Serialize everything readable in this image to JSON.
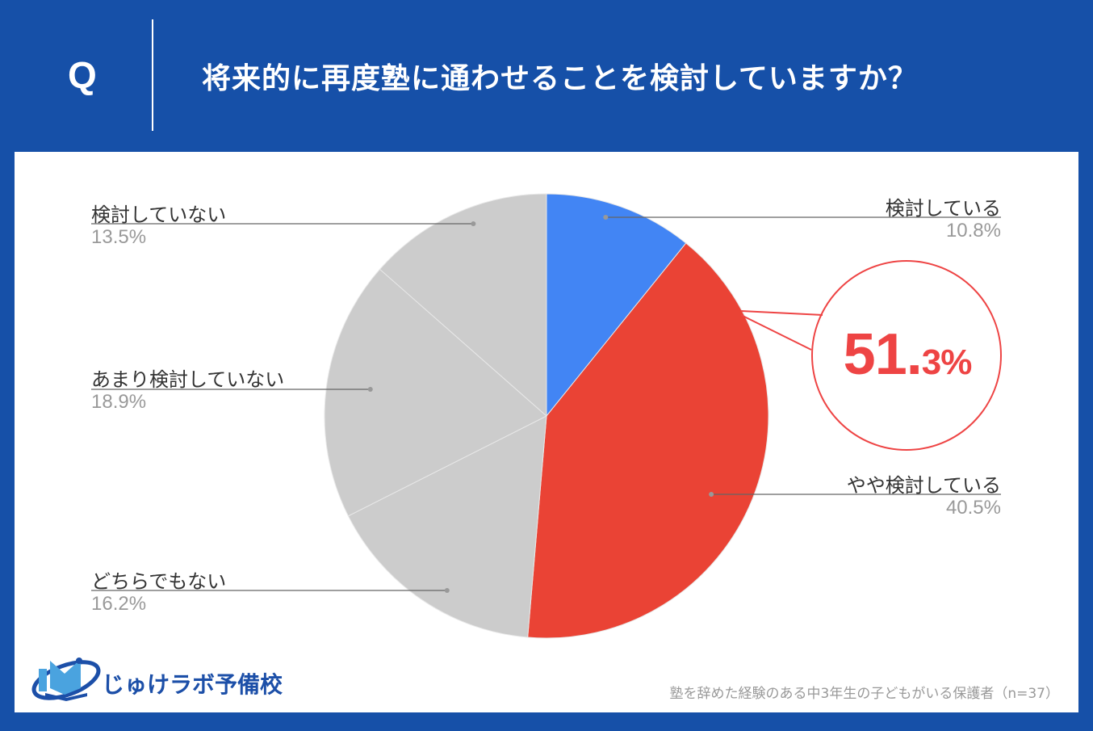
{
  "header": {
    "q_label": "Q",
    "title": "将来的に再度塾に通わせることを検討していますか？"
  },
  "chart_data": {
    "type": "pie",
    "title": "将来的に再度塾に通わせることを検討していますか？",
    "slices": [
      {
        "label": "検討している",
        "value": 10.8,
        "pct_text": "10.8%",
        "color": "#4285f4"
      },
      {
        "label": "やや検討している",
        "value": 40.5,
        "pct_text": "40.5%",
        "color": "#ea4335"
      },
      {
        "label": "どちらでもない",
        "value": 16.2,
        "pct_text": "16.2%",
        "color": "#cccccc"
      },
      {
        "label": "あまり検討していない",
        "value": 18.9,
        "pct_text": "18.9%",
        "color": "#cccccc"
      },
      {
        "label": "検討していない",
        "value": 13.5,
        "pct_text": "13.5%",
        "color": "#cccccc"
      }
    ],
    "callout": {
      "main": "51.",
      "sub": "3%"
    }
  },
  "footnote": "塾を辞めた経験のある中3年生の子どもがいる保護者（n=37）",
  "logo": {
    "text": "じゅけラボ予備校"
  }
}
